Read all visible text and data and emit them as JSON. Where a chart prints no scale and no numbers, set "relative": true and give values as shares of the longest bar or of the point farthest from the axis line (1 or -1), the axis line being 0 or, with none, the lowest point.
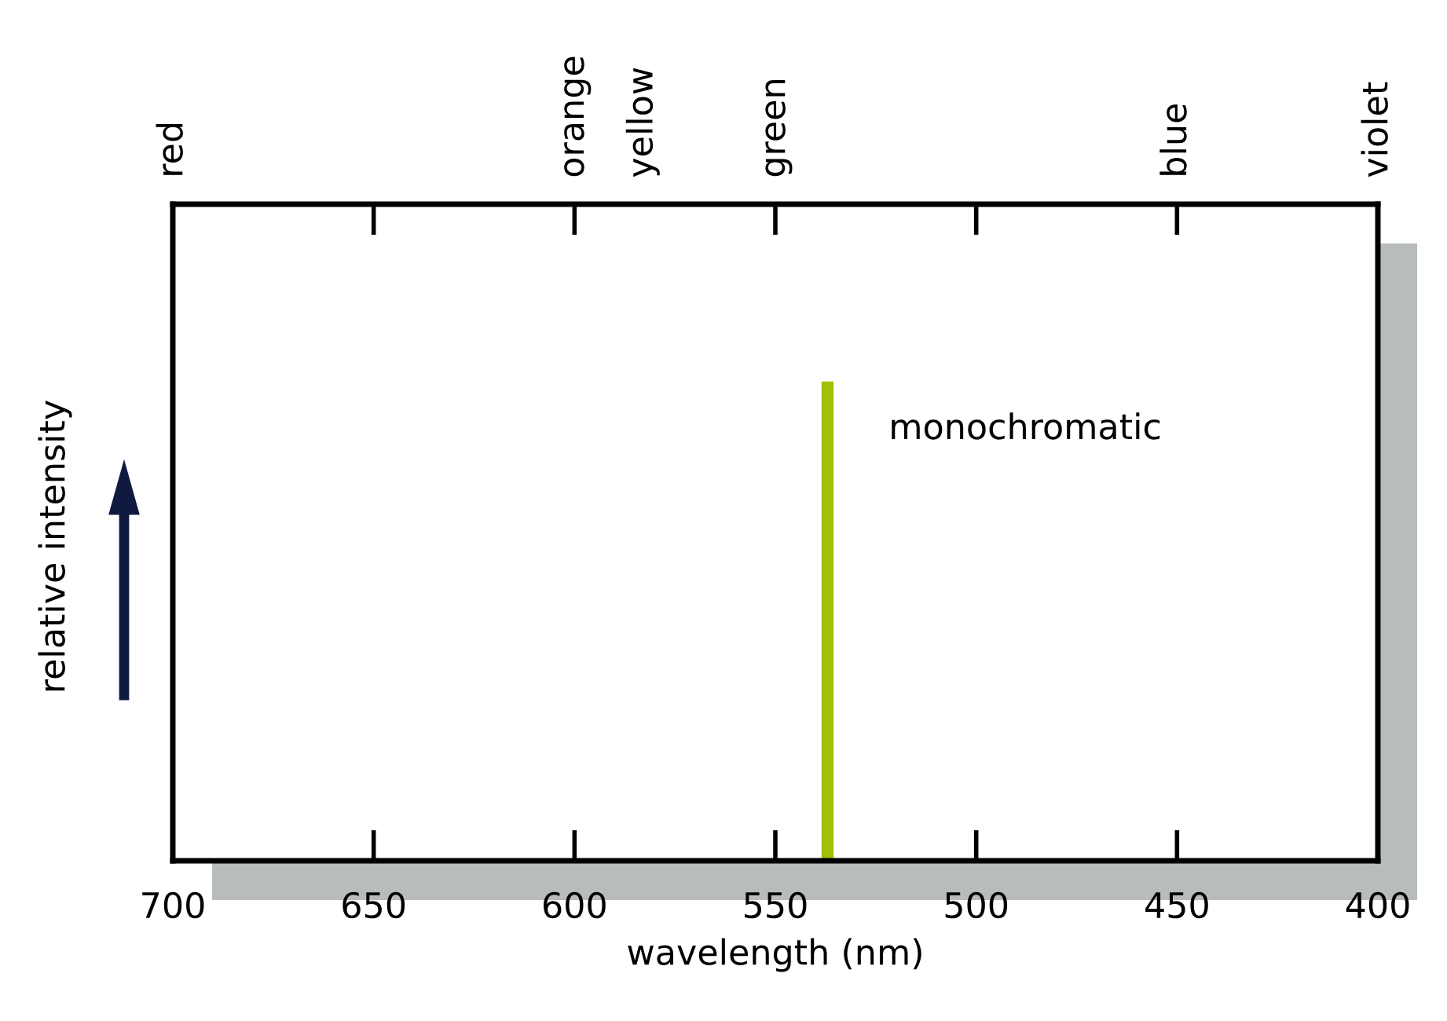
{
  "chart_data": {
    "type": "bar",
    "xlabel": "wavelength (nm)",
    "ylabel": "relative intensity",
    "relative": true,
    "x": [
      537
    ],
    "values": [
      1
    ],
    "color": "#a0c000",
    "xlim": [
      700,
      400
    ],
    "xticks": [
      700,
      650,
      600,
      550,
      500,
      450,
      400
    ],
    "annotations": [
      "red",
      "orange",
      "yellow",
      "green",
      "blue",
      "violet",
      {
        "text": "monochromatic",
        "x": 537,
        "y": 0.9
      }
    ],
    "grid": false,
    "legend": false
  }
}
